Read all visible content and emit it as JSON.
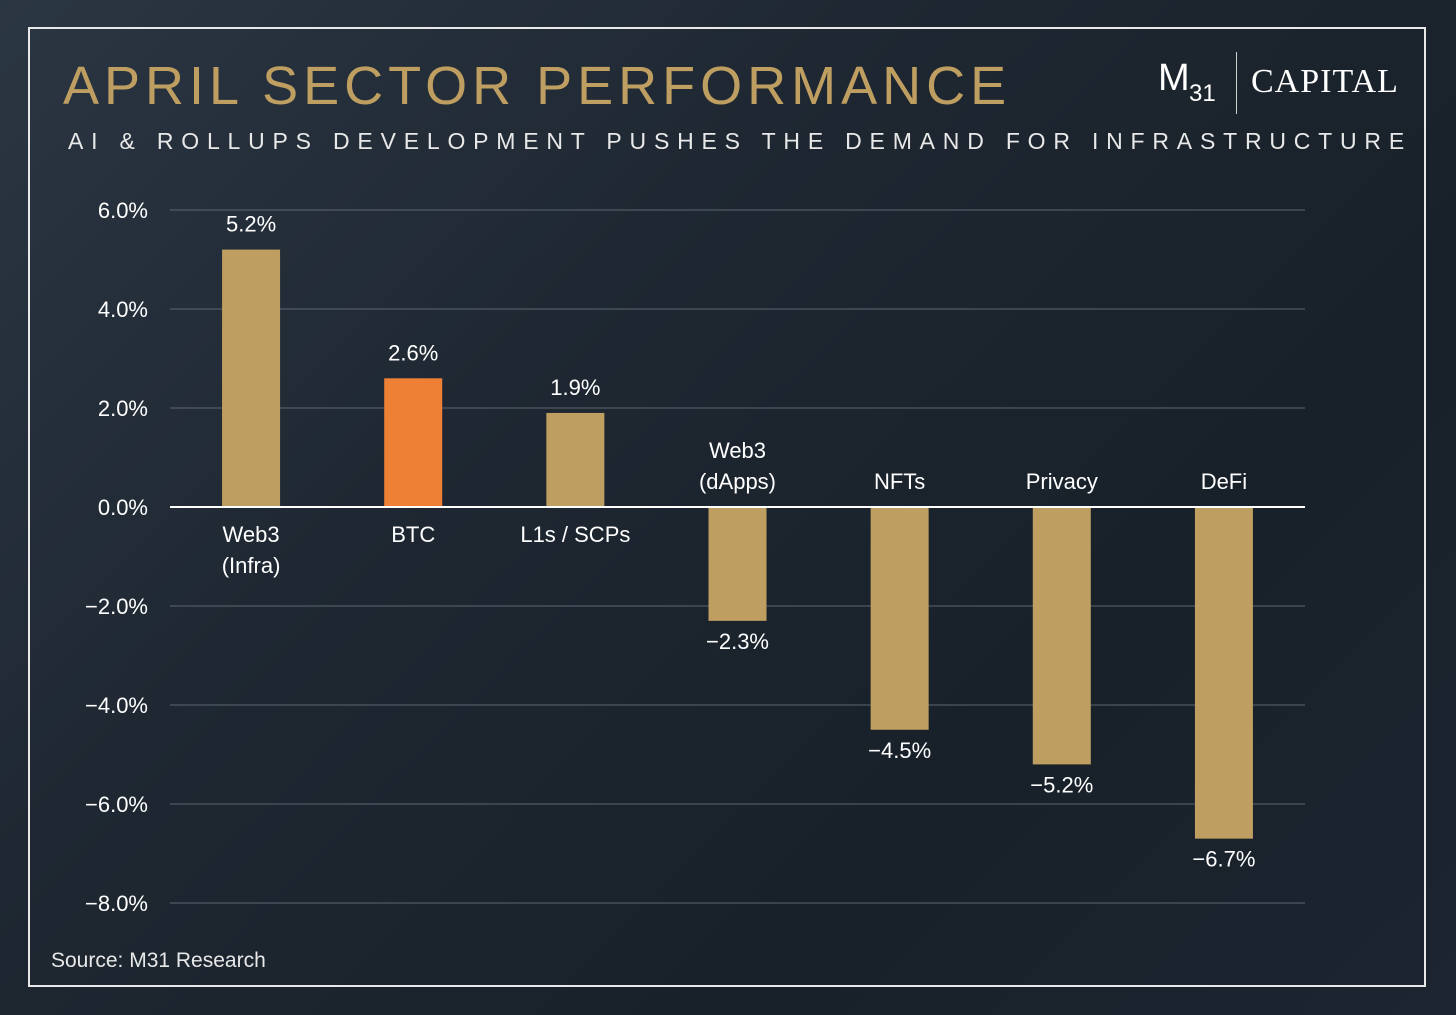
{
  "title": "APRIL SECTOR PERFORMANCE",
  "subtitle": "AI & ROLLUPS DEVELOPMENT PUSHES THE DEMAND FOR INFRASTRUCTURE",
  "logo": {
    "mark": "M",
    "subscript": "31",
    "word": "CAPITAL"
  },
  "source": "Source: M31 Research",
  "colors": {
    "bar": "#bf9f61",
    "highlight": "#ed8035",
    "title": "#bf9f61",
    "gridline": "#5c6671"
  },
  "chart_data": {
    "type": "bar",
    "title": "APRIL SECTOR PERFORMANCE",
    "categories": [
      [
        "Web3",
        "(Infra)"
      ],
      [
        "BTC"
      ],
      [
        "L1s / SCPs"
      ],
      [
        "Web3",
        "(dApps)"
      ],
      [
        "NFTs"
      ],
      [
        "Privacy"
      ],
      [
        "DeFi"
      ]
    ],
    "values": [
      5.2,
      2.6,
      1.9,
      -2.3,
      -4.5,
      -5.2,
      -6.7
    ],
    "value_labels": [
      "5.2%",
      "2.6%",
      "1.9%",
      "−2.3%",
      "−4.5%",
      "−5.2%",
      "−6.7%"
    ],
    "highlight_index": 1,
    "ylim": [
      -8,
      6
    ],
    "yticks": [
      6,
      4,
      2,
      0,
      -2,
      -4,
      -6,
      -8
    ],
    "ytick_labels": [
      "6.0%",
      "4.0%",
      "2.0%",
      "0.0%",
      "−2.0%",
      "−4.0%",
      "−6.0%",
      "−8.0%"
    ],
    "grid": true,
    "legend": "none"
  }
}
